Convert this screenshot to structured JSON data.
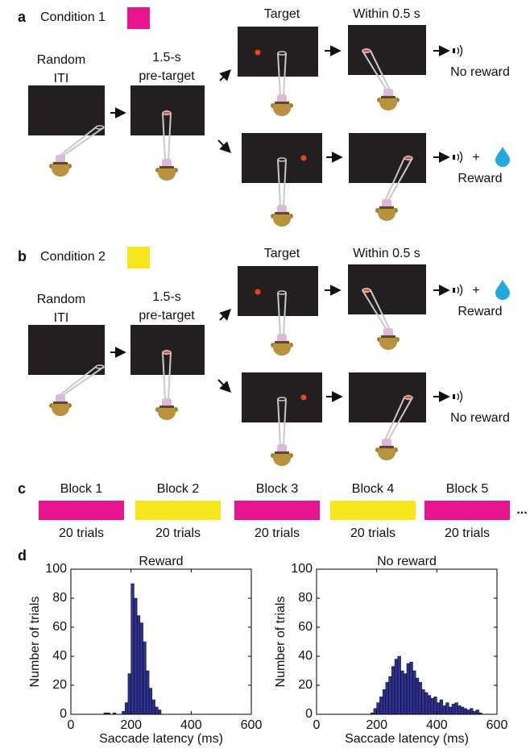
{
  "panel_a": {
    "label": "a",
    "condition": "Condition 1",
    "condition_color": "#e8168e",
    "iti_label": [
      "Random",
      "ITI"
    ],
    "pretarget_label": [
      "1.5-s",
      "pre-target"
    ],
    "target_label": "Target",
    "within_label": "Within 0.5 s",
    "top": {
      "outcome": "No reward"
    },
    "bottom": {
      "outcome": "Reward",
      "plus": "+"
    }
  },
  "panel_b": {
    "label": "b",
    "condition": "Condition 2",
    "condition_color": "#f6e61c",
    "iti_label": [
      "Random",
      "ITI"
    ],
    "pretarget_label": [
      "1.5-s",
      "pre-target"
    ],
    "target_label": "Target",
    "within_label": "Within 0.5 s",
    "top": {
      "outcome": "Reward",
      "plus": "+"
    },
    "bottom": {
      "outcome": "No reward"
    }
  },
  "panel_c": {
    "label": "c",
    "blocks": [
      {
        "name": "Block 1",
        "trials": "20 trials",
        "color": "#e8168e"
      },
      {
        "name": "Block 2",
        "trials": "20 trials",
        "color": "#f6e61c"
      },
      {
        "name": "Block 3",
        "trials": "20 trials",
        "color": "#e8168e"
      },
      {
        "name": "Block 4",
        "trials": "20 trials",
        "color": "#f6e61c"
      },
      {
        "name": "Block 5",
        "trials": "20 trials",
        "color": "#e8168e"
      }
    ],
    "continuation": "..."
  },
  "panel_d": {
    "label": "d"
  },
  "chart_data": [
    {
      "type": "histogram",
      "title": "Reward",
      "xlabel": "Saccade latency (ms)",
      "ylabel": "Number of trials",
      "bins": [
        110,
        120,
        130,
        140,
        150,
        160,
        170,
        180,
        190,
        200,
        210,
        220,
        230,
        240,
        250,
        260,
        270,
        280,
        290,
        300
      ],
      "values": [
        1,
        1,
        0,
        1,
        0,
        0,
        2,
        8,
        28,
        90,
        80,
        68,
        63,
        50,
        30,
        18,
        10,
        5,
        3
      ],
      "color": "#2e3190",
      "xlim": [
        0,
        600
      ],
      "xticks": [
        0,
        200,
        400,
        600
      ],
      "ylim": [
        0,
        100
      ],
      "yticks": [
        0,
        20,
        40,
        60,
        80,
        100
      ]
    },
    {
      "type": "histogram",
      "title": "No reward",
      "xlabel": "Saccade latency (ms)",
      "ylabel": "Number of trials",
      "bins": [
        180,
        190,
        200,
        210,
        220,
        230,
        240,
        250,
        260,
        270,
        280,
        290,
        300,
        310,
        320,
        330,
        340,
        350,
        360,
        370,
        380,
        390,
        400,
        410,
        420,
        430,
        440,
        450,
        460,
        470,
        480,
        490,
        500,
        510,
        520,
        530,
        540,
        550
      ],
      "values": [
        1,
        4,
        8,
        12,
        17,
        22,
        26,
        33,
        38,
        40,
        30,
        28,
        35,
        36,
        30,
        25,
        22,
        17,
        15,
        13,
        11,
        12,
        8,
        10,
        6,
        8,
        5,
        7,
        8,
        6,
        5,
        4,
        3,
        4,
        2,
        3,
        1
      ],
      "color": "#2e3190",
      "xlim": [
        0,
        600
      ],
      "xticks": [
        0,
        200,
        400,
        600
      ],
      "ylim": [
        0,
        100
      ],
      "yticks": [
        0,
        20,
        40,
        60,
        80,
        100
      ]
    }
  ]
}
